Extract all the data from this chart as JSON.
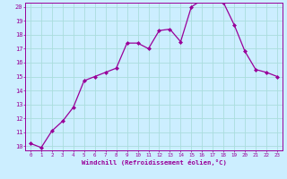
{
  "x": [
    0,
    1,
    2,
    3,
    4,
    5,
    6,
    7,
    8,
    9,
    10,
    11,
    12,
    13,
    14,
    15,
    16,
    17,
    18,
    19,
    20,
    21,
    22,
    23
  ],
  "y": [
    10.2,
    9.9,
    11.1,
    11.8,
    12.8,
    14.7,
    15.0,
    15.3,
    15.6,
    17.4,
    17.4,
    17.0,
    18.3,
    18.4,
    17.5,
    20.0,
    20.5,
    20.5,
    20.3,
    18.7,
    16.8,
    15.5,
    15.3,
    15.0
  ],
  "ylim": [
    10,
    20
  ],
  "yticks": [
    10,
    11,
    12,
    13,
    14,
    15,
    16,
    17,
    18,
    19,
    20
  ],
  "xlim": [
    0,
    23
  ],
  "xticks": [
    0,
    1,
    2,
    3,
    4,
    5,
    6,
    7,
    8,
    9,
    10,
    11,
    12,
    13,
    14,
    15,
    16,
    17,
    18,
    19,
    20,
    21,
    22,
    23
  ],
  "xlabel": "Windchill (Refroidissement éolien,°C)",
  "line_color": "#990099",
  "marker_color": "#990099",
  "bg_color": "#cceeff",
  "grid_color": "#aadddd",
  "axis_color": "#990099",
  "tick_color": "#990099",
  "label_color": "#990099"
}
